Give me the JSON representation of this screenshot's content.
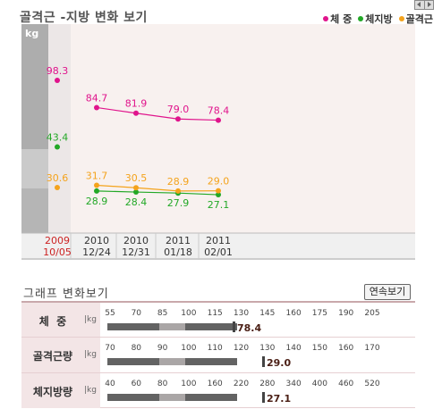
{
  "title": "골격근 -지방 변화 보기",
  "legend": [
    {
      "label": "체 중",
      "color": "#e0148c"
    },
    {
      "label": "체지방",
      "color": "#22a826"
    },
    {
      "label": "골격근",
      "color": "#f4a31c"
    }
  ],
  "chart_data": [
    {
      "type": "line",
      "yunit": "kg",
      "x_dates": [
        "2009",
        "2010",
        "2010",
        "2011",
        "2011"
      ],
      "x_subdates": [
        "10/05",
        "12/24",
        "12/31",
        "01/18",
        "02/01"
      ],
      "series": [
        {
          "name": "체 중",
          "color": "#e0148c",
          "values": [
            98.3,
            84.7,
            81.9,
            79.0,
            78.4
          ],
          "labels": [
            "98.3",
            "84.7",
            "81.9",
            "79.0",
            "78.4"
          ]
        },
        {
          "name": "체지방",
          "color": "#22a826",
          "values": [
            43.4,
            28.9,
            28.4,
            27.9,
            27.1
          ],
          "labels": [
            "43.4",
            "28.9",
            "28.4",
            "27.9",
            "27.1"
          ]
        },
        {
          "name": "골격근",
          "color": "#f4a31c",
          "values": [
            30.6,
            31.7,
            30.5,
            28.9,
            29.0
          ],
          "labels": [
            "30.6",
            "31.7",
            "30.5",
            "28.9",
            "29.0"
          ]
        }
      ]
    },
    {
      "type": "bar",
      "title": "그래프 변화보기",
      "rows": [
        {
          "label": "체  중",
          "unit": "kg",
          "ticks": [
            "55",
            "70",
            "85",
            "100",
            "115",
            "130",
            "145",
            "160",
            "175",
            "190",
            "205"
          ],
          "value": 78.4,
          "value_label": "78.4"
        },
        {
          "label": "골격근량",
          "unit": "kg",
          "ticks": [
            "70",
            "80",
            "90",
            "100",
            "110",
            "120",
            "130",
            "140",
            "150",
            "160",
            "170"
          ],
          "value": 29.0,
          "value_label": "29.0"
        },
        {
          "label": "체지방량",
          "unit": "kg",
          "ticks": [
            "40",
            "60",
            "80",
            "100",
            "160",
            "220",
            "280",
            "340",
            "400",
            "460",
            "520"
          ],
          "value": 27.1,
          "value_label": "27.1"
        }
      ]
    }
  ],
  "section2_title": "그래프 변화보기",
  "continuous_button": "연속보기",
  "colors": {
    "header_band": "#f3e5e6",
    "plot_bg": "#f8f1ef",
    "scale_gray": "#a5a5a5",
    "bar_dark": "#636363",
    "bar_light": "#aaa6a6",
    "value_text": "#4a1e14"
  }
}
